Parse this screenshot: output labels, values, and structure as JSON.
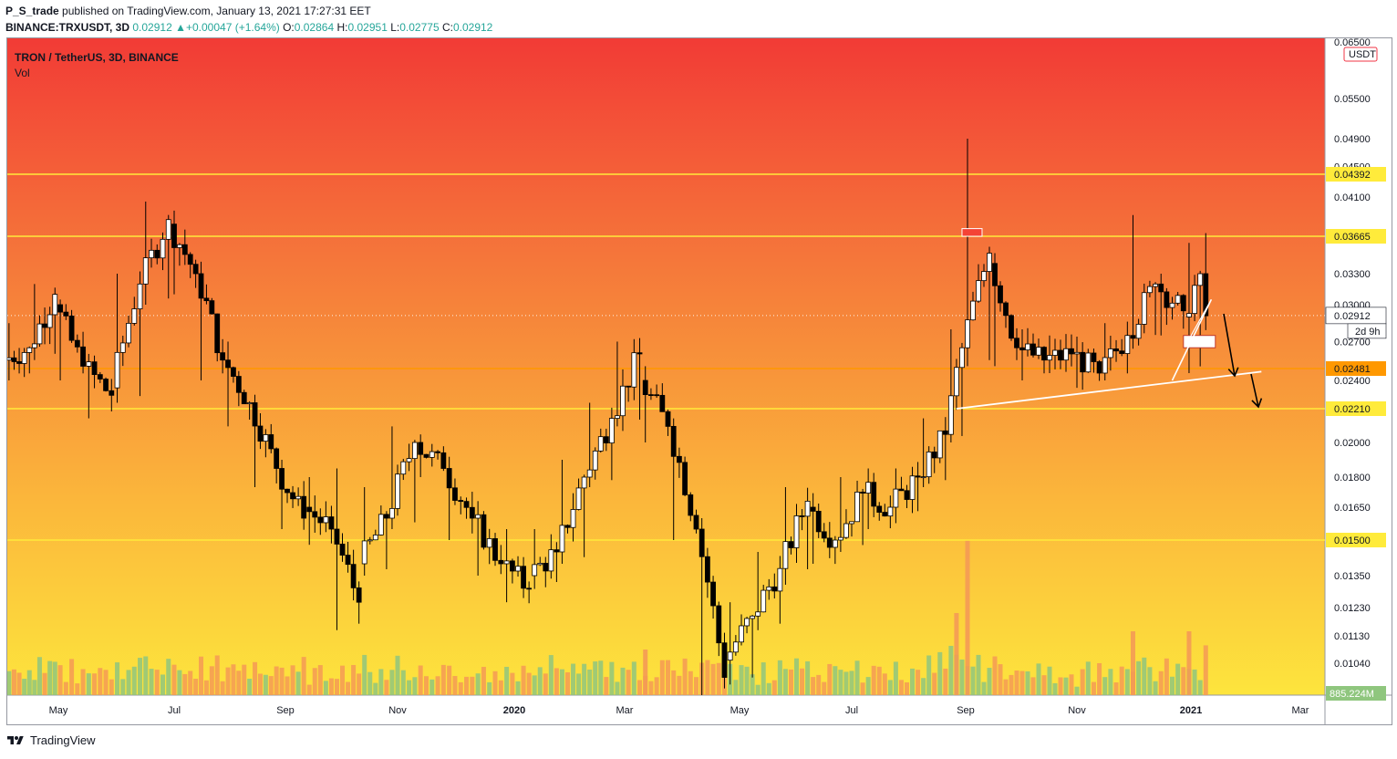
{
  "header": {
    "author": "P_S_trade",
    "published_text": "published on TradingView.com, January 13, 2021 17:27:31 EET"
  },
  "ohlc": {
    "symbol": "BINANCE:TRXUSDT, 3D",
    "last": "0.02912",
    "change_arrow": "▲",
    "change": "+0.00047 (+1.64%)",
    "o_label": "O:",
    "o": "0.02864",
    "h_label": "H:",
    "h": "0.02951",
    "l_label": "L:",
    "l": "0.02775",
    "c_label": "C:",
    "c": "0.02912"
  },
  "legend": {
    "title": "TRON / TetherUS, 3D, BINANCE",
    "indicator": "Vol"
  },
  "footer": {
    "brand": "TradingView",
    "logo_icon": "tradingview-logo-icon"
  },
  "chart_data": {
    "type": "candlestick",
    "symbol": "TRXUSDT",
    "exchange": "BINANCE",
    "interval": "3D",
    "currency_label": "USDT",
    "price_axis_ticks": [
      "0.06500",
      "0.05500",
      "0.04900",
      "0.04500",
      "0.04100",
      "0.03300",
      "0.03000",
      "0.02700",
      "0.02400",
      "0.02000",
      "0.01800",
      "0.01650",
      "0.01350",
      "0.01230",
      "0.01130",
      "0.01040"
    ],
    "time_axis_labels": [
      "May",
      "Jul",
      "Sep",
      "Nov",
      "2020",
      "Mar",
      "May",
      "Jul",
      "Sep",
      "Nov",
      "2021",
      "Mar"
    ],
    "horizontal_levels": [
      {
        "price": 0.04392,
        "label": "0.04392",
        "color": "#ffeb3b"
      },
      {
        "price": 0.03665,
        "label": "0.03665",
        "color": "#ffeb3b"
      },
      {
        "price": 0.02481,
        "label": "0.02481",
        "color": "#ff9800"
      },
      {
        "price": 0.0221,
        "label": "0.02210",
        "color": "#ffeb3b"
      },
      {
        "price": 0.015,
        "label": "0.01500",
        "color": "#ffeb3b"
      }
    ],
    "last_price": {
      "value": 0.02912,
      "label": "0.02912",
      "countdown": "2d 9h"
    },
    "volume_last": "885.224M",
    "trendline": {
      "from": {
        "time": "2020-08-27",
        "price": 0.0221
      },
      "to": {
        "time": "2021-02-08",
        "price": 0.0246
      }
    },
    "projection_arrows": 2,
    "series": [
      {
        "t": "2019-04-02",
        "o": 0.0255,
        "h": 0.0285,
        "l": 0.024,
        "c": 0.0265
      },
      {
        "t": "2019-04-17",
        "o": 0.0265,
        "h": 0.032,
        "l": 0.0255,
        "c": 0.031
      },
      {
        "t": "2019-05-02",
        "o": 0.03,
        "h": 0.0305,
        "l": 0.024,
        "c": 0.025
      },
      {
        "t": "2019-05-17",
        "o": 0.025,
        "h": 0.026,
        "l": 0.0215,
        "c": 0.023
      },
      {
        "t": "2019-06-01",
        "o": 0.0235,
        "h": 0.033,
        "l": 0.0225,
        "c": 0.032
      },
      {
        "t": "2019-06-16",
        "o": 0.032,
        "h": 0.0405,
        "l": 0.03,
        "c": 0.0385
      },
      {
        "t": "2019-07-01",
        "o": 0.038,
        "h": 0.0395,
        "l": 0.031,
        "c": 0.033
      },
      {
        "t": "2019-07-16",
        "o": 0.033,
        "h": 0.0335,
        "l": 0.024,
        "c": 0.0255
      },
      {
        "t": "2019-07-31",
        "o": 0.0255,
        "h": 0.027,
        "l": 0.021,
        "c": 0.0225
      },
      {
        "t": "2019-08-15",
        "o": 0.0225,
        "h": 0.023,
        "l": 0.0175,
        "c": 0.0185
      },
      {
        "t": "2019-08-30",
        "o": 0.0185,
        "h": 0.019,
        "l": 0.0155,
        "c": 0.016
      },
      {
        "t": "2019-09-14",
        "o": 0.0165,
        "h": 0.018,
        "l": 0.0148,
        "c": 0.0155
      },
      {
        "t": "2019-09-29",
        "o": 0.0155,
        "h": 0.0185,
        "l": 0.0115,
        "c": 0.0125
      },
      {
        "t": "2019-10-14",
        "o": 0.014,
        "h": 0.0175,
        "l": 0.0135,
        "c": 0.016
      },
      {
        "t": "2019-10-29",
        "o": 0.016,
        "h": 0.021,
        "l": 0.0155,
        "c": 0.02
      },
      {
        "t": "2019-11-13",
        "o": 0.02,
        "h": 0.0205,
        "l": 0.018,
        "c": 0.0185
      },
      {
        "t": "2019-11-28",
        "o": 0.0185,
        "h": 0.019,
        "l": 0.015,
        "c": 0.016
      },
      {
        "t": "2019-12-13",
        "o": 0.016,
        "h": 0.0165,
        "l": 0.0135,
        "c": 0.014
      },
      {
        "t": "2019-12-28",
        "o": 0.014,
        "h": 0.0155,
        "l": 0.0125,
        "c": 0.013
      },
      {
        "t": "2020-01-12",
        "o": 0.0135,
        "h": 0.0155,
        "l": 0.013,
        "c": 0.0145
      },
      {
        "t": "2020-01-27",
        "o": 0.0145,
        "h": 0.019,
        "l": 0.014,
        "c": 0.018
      },
      {
        "t": "2020-02-11",
        "o": 0.018,
        "h": 0.0225,
        "l": 0.0175,
        "c": 0.0215
      },
      {
        "t": "2020-02-26",
        "o": 0.0215,
        "h": 0.027,
        "l": 0.021,
        "c": 0.026
      },
      {
        "t": "2020-03-12",
        "o": 0.024,
        "h": 0.025,
        "l": 0.02,
        "c": 0.021
      },
      {
        "t": "2020-03-27",
        "o": 0.021,
        "h": 0.0215,
        "l": 0.015,
        "c": 0.0155
      },
      {
        "t": "2020-04-11",
        "o": 0.0155,
        "h": 0.016,
        "l": 0.0095,
        "c": 0.01
      },
      {
        "t": "2020-04-26",
        "o": 0.0105,
        "h": 0.0125,
        "l": 0.0098,
        "c": 0.012
      },
      {
        "t": "2020-05-11",
        "o": 0.012,
        "h": 0.0145,
        "l": 0.0115,
        "c": 0.0138
      },
      {
        "t": "2020-05-26",
        "o": 0.0138,
        "h": 0.0175,
        "l": 0.0135,
        "c": 0.0168
      },
      {
        "t": "2020-06-10",
        "o": 0.0165,
        "h": 0.0172,
        "l": 0.014,
        "c": 0.015
      },
      {
        "t": "2020-06-25",
        "o": 0.015,
        "h": 0.018,
        "l": 0.0145,
        "c": 0.0172
      },
      {
        "t": "2020-07-10",
        "o": 0.0172,
        "h": 0.0185,
        "l": 0.0155,
        "c": 0.0165
      },
      {
        "t": "2020-07-25",
        "o": 0.0165,
        "h": 0.0185,
        "l": 0.016,
        "c": 0.018
      },
      {
        "t": "2020-08-09",
        "o": 0.018,
        "h": 0.0215,
        "l": 0.0175,
        "c": 0.0205
      },
      {
        "t": "2020-08-24",
        "o": 0.0205,
        "h": 0.028,
        "l": 0.02,
        "c": 0.0265
      },
      {
        "t": "2020-09-02",
        "o": 0.0265,
        "h": 0.049,
        "l": 0.025,
        "c": 0.035
      },
      {
        "t": "2020-09-17",
        "o": 0.034,
        "h": 0.035,
        "l": 0.025,
        "c": 0.0265
      },
      {
        "t": "2020-10-02",
        "o": 0.0265,
        "h": 0.028,
        "l": 0.024,
        "c": 0.0255
      },
      {
        "t": "2020-10-17",
        "o": 0.0255,
        "h": 0.0275,
        "l": 0.0245,
        "c": 0.026
      },
      {
        "t": "2020-11-01",
        "o": 0.026,
        "h": 0.027,
        "l": 0.0235,
        "c": 0.0245
      },
      {
        "t": "2020-11-16",
        "o": 0.0245,
        "h": 0.0285,
        "l": 0.024,
        "c": 0.0275
      },
      {
        "t": "2020-12-01",
        "o": 0.0275,
        "h": 0.039,
        "l": 0.027,
        "c": 0.032
      },
      {
        "t": "2020-12-16",
        "o": 0.032,
        "h": 0.033,
        "l": 0.0275,
        "c": 0.0295
      },
      {
        "t": "2020-12-31",
        "o": 0.029,
        "h": 0.036,
        "l": 0.0245,
        "c": 0.033
      },
      {
        "t": "2021-01-09",
        "o": 0.033,
        "h": 0.037,
        "l": 0.0285,
        "c": 0.0291
      }
    ]
  }
}
